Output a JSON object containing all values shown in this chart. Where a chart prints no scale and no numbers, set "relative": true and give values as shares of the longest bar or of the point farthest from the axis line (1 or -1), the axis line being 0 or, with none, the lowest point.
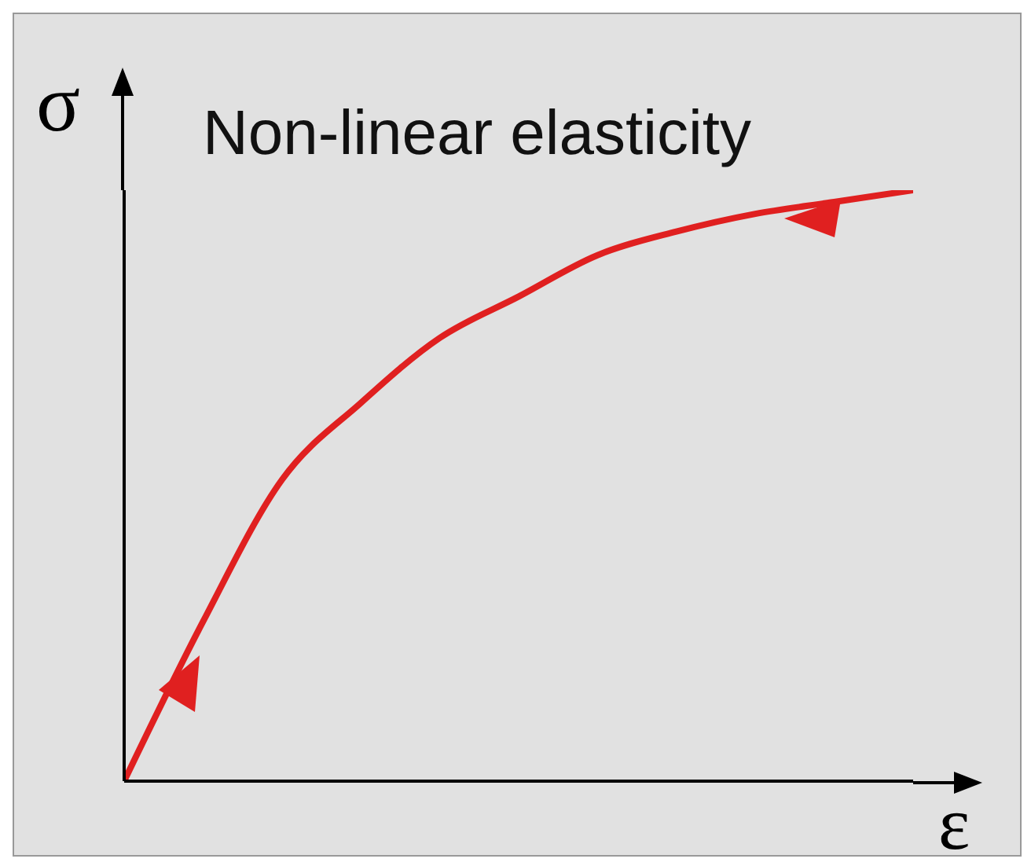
{
  "chart_data": {
    "type": "line",
    "title": "Non-linear elasticity",
    "xlabel": "ε",
    "ylabel": "σ",
    "relative": true,
    "categories": [
      null,
      null,
      null,
      null,
      null,
      null,
      null,
      null,
      null,
      null,
      null
    ],
    "series": [
      {
        "color": "#e02020",
        "values": [
          0,
          0.27,
          0.51,
          0.64,
          0.75,
          0.82,
          0.89,
          0.93,
          0.96,
          0.98,
          1
        ]
      }
    ],
    "marker": "none",
    "line_style": "solid"
  }
}
